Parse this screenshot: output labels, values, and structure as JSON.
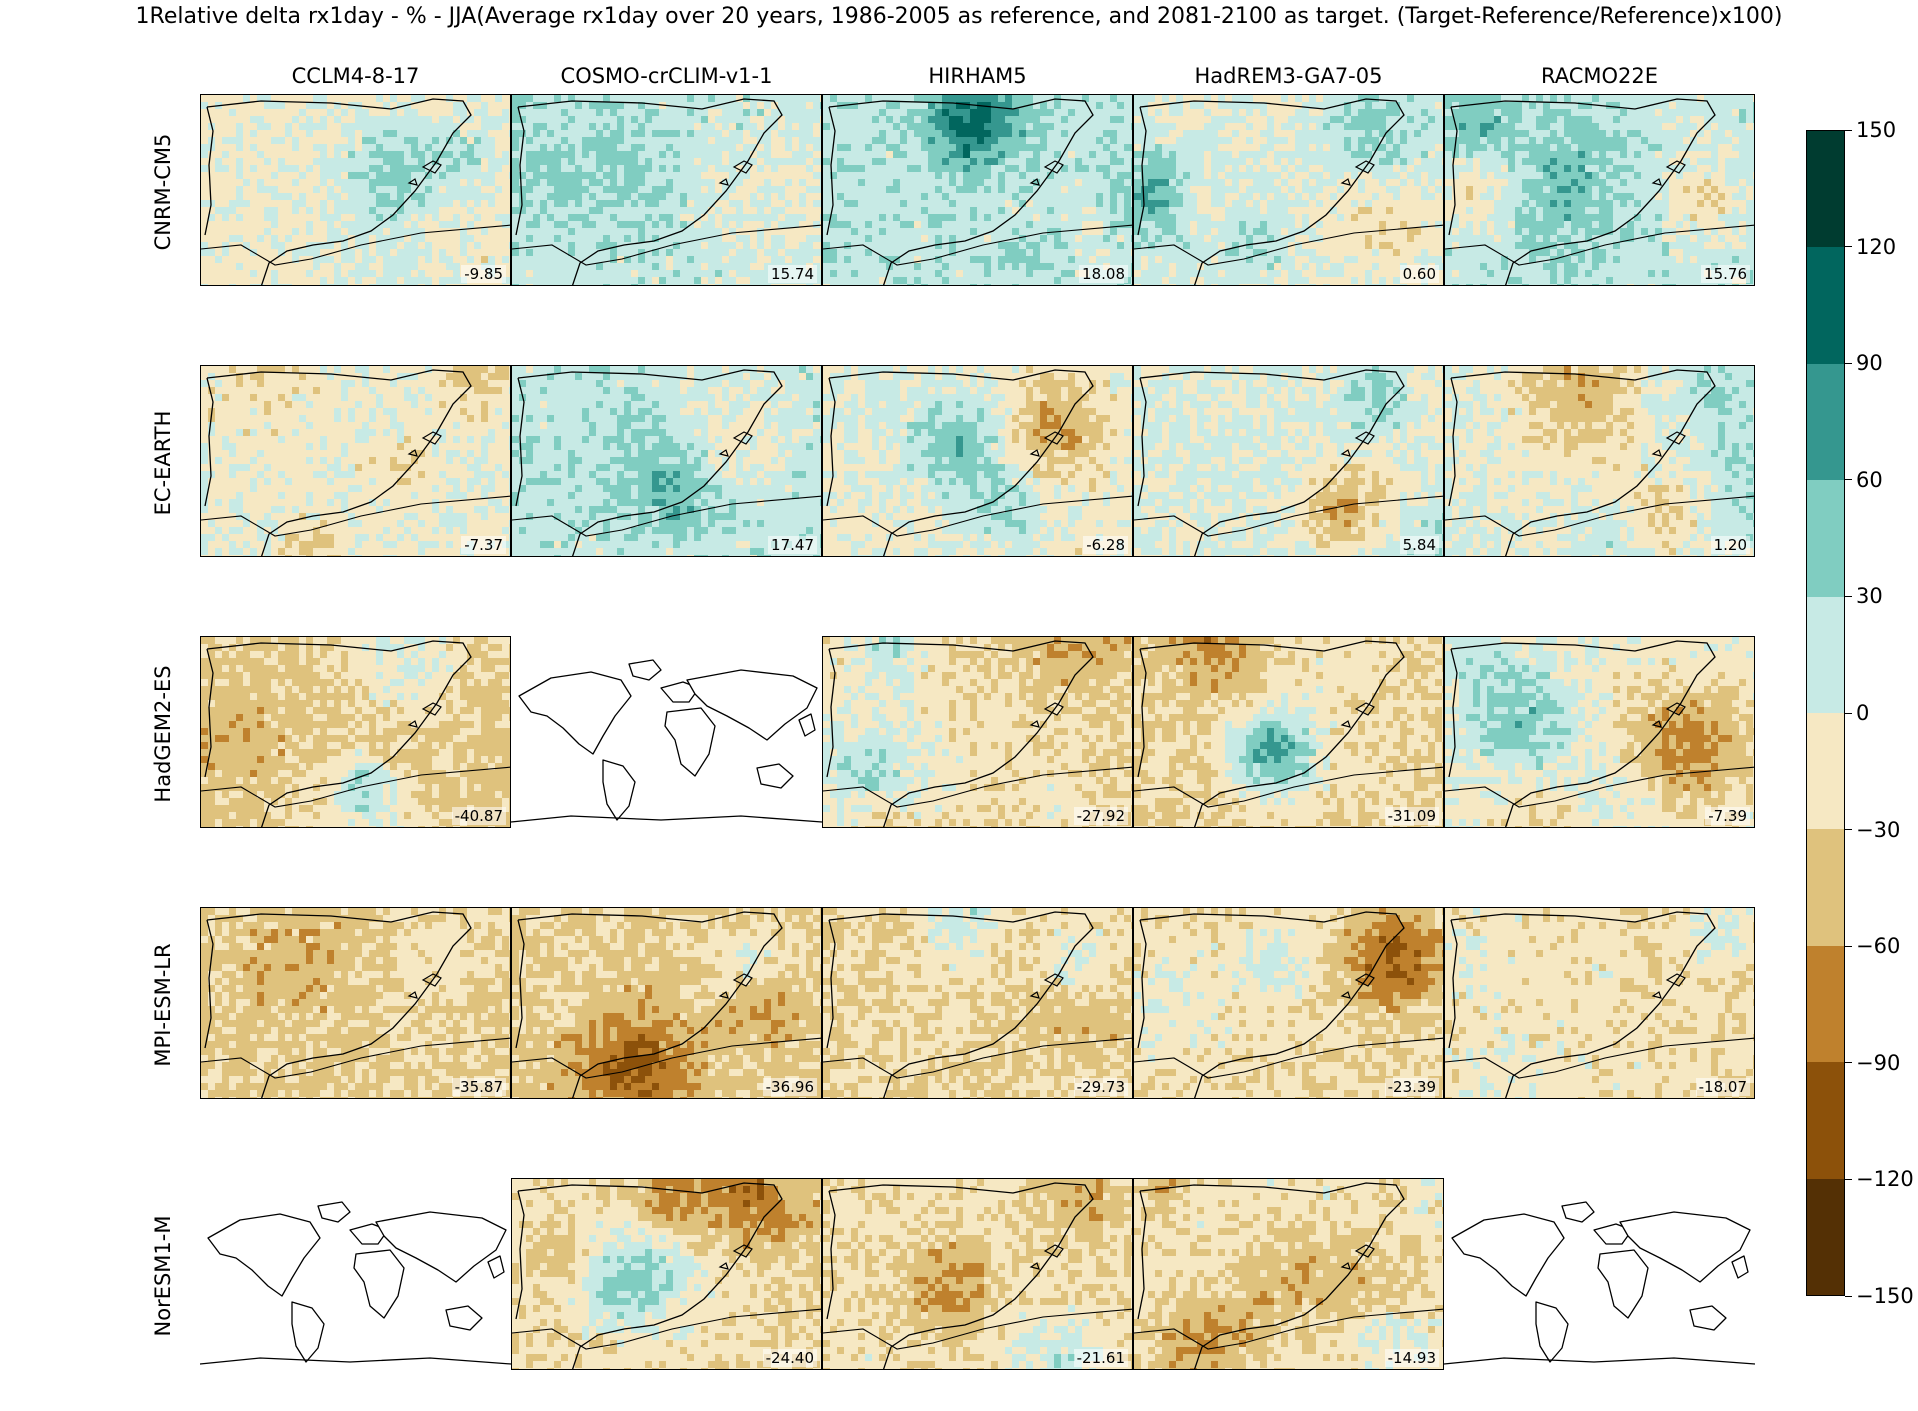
{
  "chart_data": {
    "type": "heatmap",
    "title": "1Relative delta rx1day - % - JJA(Average rx1day over 20 years, 1986-2005 as reference, and 2081-2100 as target. (Target-Reference/Reference)x100)",
    "columns": [
      "CCLM4-8-17",
      "COSMO-crCLIM-v1-1",
      "HIRHAM5",
      "HadREM3-GA7-05",
      "RACMO22E"
    ],
    "rows": [
      "CNRM-CM5",
      "EC-EARTH",
      "HadGEM2-ES",
      "MPI-ESM-LR",
      "NorESM1-M"
    ],
    "panel_values": [
      [
        "-9.85",
        "15.74",
        "18.08",
        "0.60",
        "15.76"
      ],
      [
        "-7.37",
        "17.47",
        "-6.28",
        "5.84",
        "1.20"
      ],
      [
        "-40.87",
        null,
        "-27.92",
        "-31.09",
        "-7.39"
      ],
      [
        "-35.87",
        "-36.96",
        "-29.73",
        "-23.39",
        "-18.07"
      ],
      [
        null,
        "-24.40",
        "-21.61",
        "-14.93",
        null
      ]
    ],
    "colorbar": {
      "min": -150,
      "max": 150,
      "ticks": [
        "150",
        "120",
        "90",
        "60",
        "30",
        "0",
        "−30",
        "−60",
        "−90",
        "−120",
        "−150"
      ],
      "tick_values": [
        150,
        120,
        90,
        60,
        30,
        0,
        -30,
        -60,
        -90,
        -120,
        -150
      ],
      "colors": [
        "#003c30",
        "#01665e",
        "#35978f",
        "#80cdc1",
        "#c7eae5",
        "#f6e8c3",
        "#dfc27d",
        "#bf812d",
        "#8c510a",
        "#543005"
      ]
    }
  }
}
